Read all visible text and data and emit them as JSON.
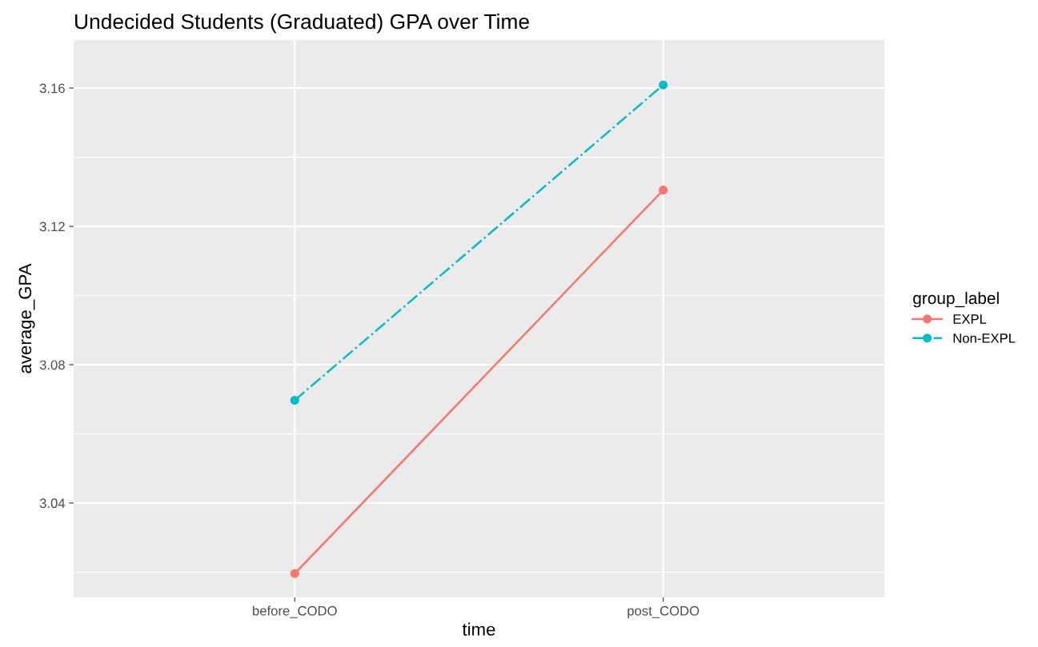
{
  "chart_data": {
    "type": "line",
    "title": "Undecided Students (Graduated) GPA over Time",
    "xlabel": "time",
    "ylabel": "average_GPA",
    "legend_title": "group_label",
    "categories": [
      "before_CODO",
      "post_CODO"
    ],
    "series": [
      {
        "name": "EXPL",
        "color": "#f8766d",
        "values": [
          3.0196,
          3.1305
        ],
        "line_style": "solid"
      },
      {
        "name": "Non-EXPL",
        "color": "#00bfc4",
        "values": [
          3.0697,
          3.1609
        ],
        "line_style": "dashdot"
      }
    ],
    "ylim": [
      3.0127,
      3.1739
    ],
    "yticks": [
      {
        "value": 3.02,
        "label": null
      },
      3.04,
      {
        "value": 3.06,
        "label": null
      },
      3.08,
      {
        "value": 3.1,
        "label": null
      },
      3.12,
      {
        "value": 3.14,
        "label": null
      },
      3.16
    ],
    "grid": true,
    "legend": "right",
    "marker": "circle"
  }
}
